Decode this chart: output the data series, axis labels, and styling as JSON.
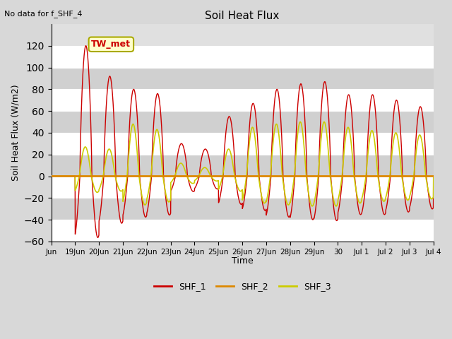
{
  "title": "Soil Heat Flux",
  "subtitle": "No data for f_SHF_4",
  "ylabel": "Soil Heat Flux (W/m2)",
  "xlabel": "Time",
  "legend_label": "TW_met",
  "series_labels": [
    "SHF_1",
    "SHF_2",
    "SHF_3"
  ],
  "series_colors": [
    "#cc0000",
    "#dd8800",
    "#cccc00"
  ],
  "ylim": [
    -60,
    140
  ],
  "yticks": [
    -60,
    -40,
    -20,
    0,
    20,
    40,
    60,
    80,
    100,
    120
  ],
  "background_color": "#d8d8d8",
  "plot_bg_color": "#e0e0e0",
  "grid_color": "#ffffff",
  "band_color": "#d0d0d0"
}
